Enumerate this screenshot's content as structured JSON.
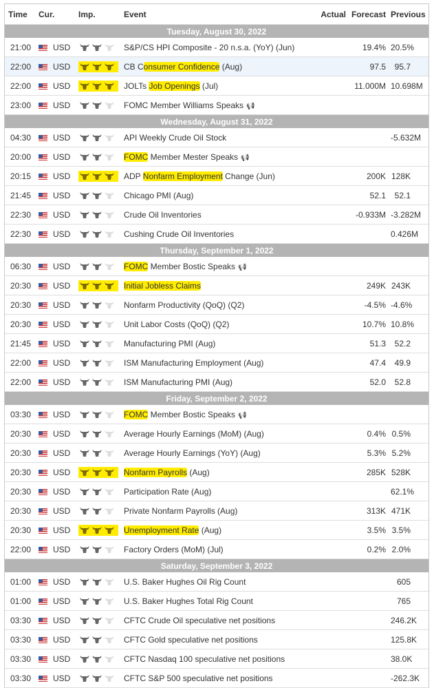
{
  "header": {
    "time": "Time",
    "cur": "Cur.",
    "imp": "Imp.",
    "event": "Event",
    "actual": "Actual",
    "forecast": "Forecast",
    "previous": "Previous"
  },
  "colors": {
    "highlight": "#ffec00",
    "date_bar": "#b4b4b4",
    "bull_dark": "#555555",
    "bull_light": "#dddddd"
  },
  "days": [
    {
      "date": "Tuesday, August 30, 2022",
      "events": [
        {
          "time": "21:00",
          "cur": "USD",
          "imp": 2,
          "hl": false,
          "event": [
            [
              "S&P/CS HPI Composite - 20 n.s.a. (YoY) (Jun)",
              false
            ]
          ],
          "actual": "",
          "forecast": "19.4%",
          "previous": "20.5%"
        },
        {
          "time": "22:00",
          "cur": "USD",
          "imp": 3,
          "hl": true,
          "row_hl": true,
          "event": [
            [
              "CB C",
              false
            ],
            [
              "onsumer Confidence",
              true
            ],
            [
              " (Aug)",
              false
            ]
          ],
          "actual": "",
          "forecast": "97.5",
          "previous": "95.7"
        },
        {
          "time": "22:00",
          "cur": "USD",
          "imp": 3,
          "hl": true,
          "event": [
            [
              "JOLTs ",
              false
            ],
            [
              "Job Openings",
              true
            ],
            [
              " (Jul)",
              false
            ]
          ],
          "actual": "",
          "forecast": "11.000M",
          "previous": "10.698M"
        },
        {
          "time": "23:00",
          "cur": "USD",
          "imp": 2,
          "hl": false,
          "speech": true,
          "event": [
            [
              "FOMC Member Williams Speaks",
              false
            ]
          ],
          "actual": "",
          "forecast": "",
          "previous": ""
        }
      ]
    },
    {
      "date": "Wednesday, August 31, 2022",
      "events": [
        {
          "time": "04:30",
          "cur": "USD",
          "imp": 2,
          "hl": false,
          "event": [
            [
              "API Weekly Crude Oil Stock",
              false
            ]
          ],
          "actual": "",
          "forecast": "",
          "previous": "-5.632M"
        },
        {
          "time": "20:00",
          "cur": "USD",
          "imp": 2,
          "hl": false,
          "speech": true,
          "event": [
            [
              "FOMC",
              true
            ],
            [
              " Member Mester Speaks",
              false
            ]
          ],
          "actual": "",
          "forecast": "",
          "previous": ""
        },
        {
          "time": "20:15",
          "cur": "USD",
          "imp": 3,
          "hl": true,
          "event": [
            [
              "ADP ",
              false
            ],
            [
              "Nonfarm Employment",
              true
            ],
            [
              " Change (Jun)",
              false
            ]
          ],
          "actual": "",
          "forecast": "200K",
          "previous": "128K"
        },
        {
          "time": "21:45",
          "cur": "USD",
          "imp": 2,
          "hl": false,
          "event": [
            [
              "Chicago PMI (Aug)",
              false
            ]
          ],
          "actual": "",
          "forecast": "52.1",
          "previous": "52.1"
        },
        {
          "time": "22:30",
          "cur": "USD",
          "imp": 2,
          "hl": false,
          "event": [
            [
              "Crude Oil Inventories",
              false
            ]
          ],
          "actual": "",
          "forecast": "-0.933M",
          "previous": "-3.282M"
        },
        {
          "time": "22:30",
          "cur": "USD",
          "imp": 2,
          "hl": false,
          "event": [
            [
              "Cushing Crude Oil Inventories",
              false
            ]
          ],
          "actual": "",
          "forecast": "",
          "previous": "0.426M"
        }
      ]
    },
    {
      "date": "Thursday, September 1, 2022",
      "events": [
        {
          "time": "06:30",
          "cur": "USD",
          "imp": 2,
          "hl": false,
          "speech": true,
          "event": [
            [
              "FOMC",
              true
            ],
            [
              " Member Bostic Speaks",
              false
            ]
          ],
          "actual": "",
          "forecast": "",
          "previous": ""
        },
        {
          "time": "20:30",
          "cur": "USD",
          "imp": 3,
          "hl": true,
          "event": [
            [
              "Initial Jobless Claims",
              true
            ]
          ],
          "actual": "",
          "forecast": "249K",
          "previous": "243K"
        },
        {
          "time": "20:30",
          "cur": "USD",
          "imp": 2,
          "hl": false,
          "event": [
            [
              "Nonfarm Productivity (QoQ) (Q2)",
              false
            ]
          ],
          "actual": "",
          "forecast": "-4.5%",
          "previous": "-4.6%"
        },
        {
          "time": "20:30",
          "cur": "USD",
          "imp": 2,
          "hl": false,
          "event": [
            [
              "Unit Labor Costs (QoQ) (Q2)",
              false
            ]
          ],
          "actual": "",
          "forecast": "10.7%",
          "previous": "10.8%"
        },
        {
          "time": "21:45",
          "cur": "USD",
          "imp": 2,
          "hl": false,
          "event": [
            [
              "Manufacturing PMI (Aug)",
              false
            ]
          ],
          "actual": "",
          "forecast": "51.3",
          "previous": "52.2"
        },
        {
          "time": "22:00",
          "cur": "USD",
          "imp": 2,
          "hl": false,
          "event": [
            [
              "ISM Manufacturing Employment (Aug)",
              false
            ]
          ],
          "actual": "",
          "forecast": "47.4",
          "previous": "49.9"
        },
        {
          "time": "22:00",
          "cur": "USD",
          "imp": 2,
          "hl": false,
          "event": [
            [
              "ISM Manufacturing PMI (Aug)",
              false
            ]
          ],
          "actual": "",
          "forecast": "52.0",
          "previous": "52.8"
        }
      ]
    },
    {
      "date": "Friday, September 2, 2022",
      "events": [
        {
          "time": "03:30",
          "cur": "USD",
          "imp": 2,
          "hl": false,
          "speech": true,
          "event": [
            [
              "FOMC",
              true
            ],
            [
              " Member Bostic Speaks",
              false
            ]
          ],
          "actual": "",
          "forecast": "",
          "previous": ""
        },
        {
          "time": "20:30",
          "cur": "USD",
          "imp": 2,
          "hl": false,
          "event": [
            [
              "Average Hourly Earnings (MoM) (Aug)",
              false
            ]
          ],
          "actual": "",
          "forecast": "0.4%",
          "previous": "0.5%"
        },
        {
          "time": "20:30",
          "cur": "USD",
          "imp": 2,
          "hl": false,
          "event": [
            [
              "Average Hourly Earnings (YoY) (Aug)",
              false
            ]
          ],
          "actual": "",
          "forecast": "5.3%",
          "previous": "5.2%"
        },
        {
          "time": "20:30",
          "cur": "USD",
          "imp": 3,
          "hl": true,
          "event": [
            [
              "Nonfarm Payrolls",
              true
            ],
            [
              " (Aug)",
              false
            ]
          ],
          "actual": "",
          "forecast": "285K",
          "previous": "528K"
        },
        {
          "time": "20:30",
          "cur": "USD",
          "imp": 2,
          "hl": false,
          "event": [
            [
              "Participation Rate (Aug)",
              false
            ]
          ],
          "actual": "",
          "forecast": "",
          "previous": "62.1%"
        },
        {
          "time": "20:30",
          "cur": "USD",
          "imp": 2,
          "hl": false,
          "event": [
            [
              "Private Nonfarm Payrolls (Aug)",
              false
            ]
          ],
          "actual": "",
          "forecast": "313K",
          "previous": "471K"
        },
        {
          "time": "20:30",
          "cur": "USD",
          "imp": 3,
          "hl": true,
          "event": [
            [
              "Unemployment Rate",
              true
            ],
            [
              " (Aug)",
              false
            ]
          ],
          "actual": "",
          "forecast": "3.5%",
          "previous": "3.5%"
        },
        {
          "time": "22:00",
          "cur": "USD",
          "imp": 2,
          "hl": false,
          "event": [
            [
              "Factory Orders (MoM) (Jul)",
              false
            ]
          ],
          "actual": "",
          "forecast": "0.2%",
          "previous": "2.0%"
        }
      ]
    },
    {
      "date": "Saturday, September 3, 2022",
      "events": [
        {
          "time": "01:00",
          "cur": "USD",
          "imp": 2,
          "hl": false,
          "event": [
            [
              "U.S. Baker Hughes Oil Rig Count",
              false
            ]
          ],
          "actual": "",
          "forecast": "",
          "previous": "605"
        },
        {
          "time": "01:00",
          "cur": "USD",
          "imp": 2,
          "hl": false,
          "event": [
            [
              "U.S. Baker Hughes Total Rig Count",
              false
            ]
          ],
          "actual": "",
          "forecast": "",
          "previous": "765"
        },
        {
          "time": "03:30",
          "cur": "USD",
          "imp": 2,
          "hl": false,
          "event": [
            [
              "CFTC Crude Oil speculative net positions",
              false
            ]
          ],
          "actual": "",
          "forecast": "",
          "previous": "246.2K"
        },
        {
          "time": "03:30",
          "cur": "USD",
          "imp": 2,
          "hl": false,
          "event": [
            [
              "CFTC Gold speculative net positions",
              false
            ]
          ],
          "actual": "",
          "forecast": "",
          "previous": "125.8K"
        },
        {
          "time": "03:30",
          "cur": "USD",
          "imp": 2,
          "hl": false,
          "event": [
            [
              "CFTC Nasdaq 100 speculative net positions",
              false
            ]
          ],
          "actual": "",
          "forecast": "",
          "previous": "38.0K"
        },
        {
          "time": "03:30",
          "cur": "USD",
          "imp": 2,
          "hl": false,
          "event": [
            [
              "CFTC S&P 500 speculative net positions",
              false
            ]
          ],
          "actual": "",
          "forecast": "",
          "previous": "-262.3K"
        }
      ]
    }
  ]
}
